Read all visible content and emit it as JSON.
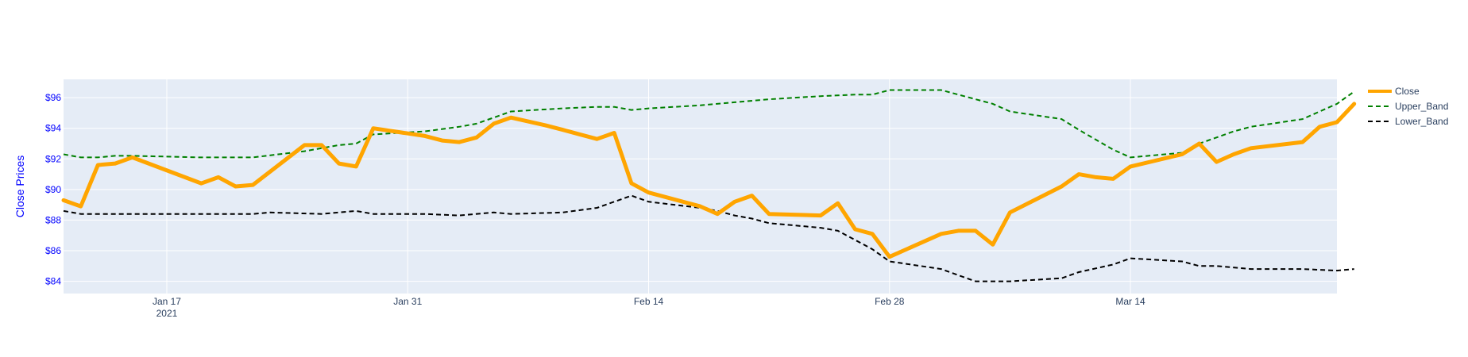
{
  "chart_data": {
    "type": "line",
    "ylabel": "Close Prices",
    "ylim": [
      83.2,
      97.2
    ],
    "xlim": [
      "2021-01-11",
      "2021-03-26"
    ],
    "grid": true,
    "legend_position": "top-right",
    "x_ticks": [
      {
        "date": "2021-01-17",
        "label": "Jan 17",
        "sublabel": "2021"
      },
      {
        "date": "2021-01-31",
        "label": "Jan 31",
        "sublabel": ""
      },
      {
        "date": "2021-02-14",
        "label": "Feb 14",
        "sublabel": ""
      },
      {
        "date": "2021-02-28",
        "label": "Feb 28",
        "sublabel": ""
      },
      {
        "date": "2021-03-14",
        "label": "Mar 14",
        "sublabel": ""
      }
    ],
    "y_ticks": [
      {
        "value": 84,
        "label": "$84"
      },
      {
        "value": 86,
        "label": "$86"
      },
      {
        "value": 88,
        "label": "$88"
      },
      {
        "value": 90,
        "label": "$90"
      },
      {
        "value": 92,
        "label": "$92"
      },
      {
        "value": 94,
        "label": "$94"
      },
      {
        "value": 96,
        "label": "$96"
      }
    ],
    "series": [
      {
        "name": "Close",
        "color": "#FFA500",
        "dash": "solid",
        "points": [
          [
            "2021-01-11",
            89.3
          ],
          [
            "2021-01-12",
            88.9
          ],
          [
            "2021-01-13",
            91.6
          ],
          [
            "2021-01-14",
            91.7
          ],
          [
            "2021-01-15",
            92.1
          ],
          [
            "2021-01-19",
            90.4
          ],
          [
            "2021-01-20",
            90.8
          ],
          [
            "2021-01-21",
            90.2
          ],
          [
            "2021-01-22",
            90.3
          ],
          [
            "2021-01-25",
            92.9
          ],
          [
            "2021-01-26",
            92.9
          ],
          [
            "2021-01-27",
            91.7
          ],
          [
            "2021-01-28",
            91.5
          ],
          [
            "2021-01-29",
            94.0
          ],
          [
            "2021-02-01",
            93.5
          ],
          [
            "2021-02-02",
            93.2
          ],
          [
            "2021-02-03",
            93.1
          ],
          [
            "2021-02-04",
            93.4
          ],
          [
            "2021-02-05",
            94.3
          ],
          [
            "2021-02-06",
            94.7
          ],
          [
            "2021-02-08",
            94.2
          ],
          [
            "2021-02-09",
            93.9
          ],
          [
            "2021-02-10",
            93.6
          ],
          [
            "2021-02-11",
            93.3
          ],
          [
            "2021-02-12",
            93.7
          ],
          [
            "2021-02-13",
            90.4
          ],
          [
            "2021-02-14",
            89.8
          ],
          [
            "2021-02-17",
            88.9
          ],
          [
            "2021-02-18",
            88.4
          ],
          [
            "2021-02-19",
            89.2
          ],
          [
            "2021-02-20",
            89.6
          ],
          [
            "2021-02-21",
            88.4
          ],
          [
            "2021-02-24",
            88.3
          ],
          [
            "2021-02-25",
            89.1
          ],
          [
            "2021-02-26",
            87.4
          ],
          [
            "2021-02-27",
            87.1
          ],
          [
            "2021-02-28",
            85.6
          ],
          [
            "2021-03-03",
            87.1
          ],
          [
            "2021-03-04",
            87.3
          ],
          [
            "2021-03-05",
            87.3
          ],
          [
            "2021-03-06",
            86.4
          ],
          [
            "2021-03-07",
            88.5
          ],
          [
            "2021-03-10",
            90.2
          ],
          [
            "2021-03-11",
            91.0
          ],
          [
            "2021-03-12",
            90.8
          ],
          [
            "2021-03-13",
            90.7
          ],
          [
            "2021-03-14",
            91.5
          ],
          [
            "2021-03-17",
            92.3
          ],
          [
            "2021-03-18",
            93.0
          ],
          [
            "2021-03-19",
            91.8
          ],
          [
            "2021-03-20",
            92.3
          ],
          [
            "2021-03-21",
            92.7
          ],
          [
            "2021-03-24",
            93.1
          ],
          [
            "2021-03-25",
            94.1
          ],
          [
            "2021-03-26",
            94.4
          ],
          [
            "2021-03-27",
            95.6
          ]
        ]
      },
      {
        "name": "Upper_Band",
        "color": "#008000",
        "dash": "dashed",
        "points": [
          [
            "2021-01-11",
            92.3
          ],
          [
            "2021-01-12",
            92.1
          ],
          [
            "2021-01-13",
            92.1
          ],
          [
            "2021-01-14",
            92.2
          ],
          [
            "2021-01-15",
            92.2
          ],
          [
            "2021-01-19",
            92.1
          ],
          [
            "2021-01-20",
            92.1
          ],
          [
            "2021-01-22",
            92.1
          ],
          [
            "2021-01-25",
            92.5
          ],
          [
            "2021-01-27",
            92.9
          ],
          [
            "2021-01-28",
            93.0
          ],
          [
            "2021-01-29",
            93.6
          ],
          [
            "2021-02-01",
            93.8
          ],
          [
            "2021-02-03",
            94.1
          ],
          [
            "2021-02-04",
            94.3
          ],
          [
            "2021-02-05",
            94.7
          ],
          [
            "2021-02-06",
            95.1
          ],
          [
            "2021-02-09",
            95.3
          ],
          [
            "2021-02-11",
            95.4
          ],
          [
            "2021-02-12",
            95.4
          ],
          [
            "2021-02-13",
            95.2
          ],
          [
            "2021-02-14",
            95.3
          ],
          [
            "2021-02-17",
            95.5
          ],
          [
            "2021-02-19",
            95.7
          ],
          [
            "2021-02-21",
            95.9
          ],
          [
            "2021-02-24",
            96.1
          ],
          [
            "2021-02-26",
            96.2
          ],
          [
            "2021-02-27",
            96.2
          ],
          [
            "2021-02-28",
            96.5
          ],
          [
            "2021-03-03",
            96.5
          ],
          [
            "2021-03-05",
            95.9
          ],
          [
            "2021-03-06",
            95.6
          ],
          [
            "2021-03-07",
            95.1
          ],
          [
            "2021-03-10",
            94.6
          ],
          [
            "2021-03-11",
            93.9
          ],
          [
            "2021-03-13",
            92.6
          ],
          [
            "2021-03-14",
            92.1
          ],
          [
            "2021-03-17",
            92.4
          ],
          [
            "2021-03-18",
            93.0
          ],
          [
            "2021-03-19",
            93.4
          ],
          [
            "2021-03-20",
            93.8
          ],
          [
            "2021-03-21",
            94.1
          ],
          [
            "2021-03-24",
            94.6
          ],
          [
            "2021-03-25",
            95.1
          ],
          [
            "2021-03-26",
            95.6
          ],
          [
            "2021-03-27",
            96.4
          ]
        ]
      },
      {
        "name": "Lower_Band",
        "color": "#000000",
        "dash": "dashed",
        "points": [
          [
            "2021-01-11",
            88.6
          ],
          [
            "2021-01-12",
            88.4
          ],
          [
            "2021-01-14",
            88.4
          ],
          [
            "2021-01-15",
            88.4
          ],
          [
            "2021-01-19",
            88.4
          ],
          [
            "2021-01-22",
            88.4
          ],
          [
            "2021-01-23",
            88.5
          ],
          [
            "2021-01-26",
            88.4
          ],
          [
            "2021-01-28",
            88.6
          ],
          [
            "2021-01-29",
            88.4
          ],
          [
            "2021-02-01",
            88.4
          ],
          [
            "2021-02-03",
            88.3
          ],
          [
            "2021-02-05",
            88.5
          ],
          [
            "2021-02-06",
            88.4
          ],
          [
            "2021-02-09",
            88.5
          ],
          [
            "2021-02-11",
            88.8
          ],
          [
            "2021-02-13",
            89.6
          ],
          [
            "2021-02-14",
            89.2
          ],
          [
            "2021-02-17",
            88.8
          ],
          [
            "2021-02-18",
            88.6
          ],
          [
            "2021-02-19",
            88.3
          ],
          [
            "2021-02-20",
            88.1
          ],
          [
            "2021-02-21",
            87.8
          ],
          [
            "2021-02-24",
            87.5
          ],
          [
            "2021-02-25",
            87.3
          ],
          [
            "2021-02-26",
            86.7
          ],
          [
            "2021-02-27",
            86.1
          ],
          [
            "2021-02-28",
            85.3
          ],
          [
            "2021-03-03",
            84.8
          ],
          [
            "2021-03-04",
            84.4
          ],
          [
            "2021-03-05",
            84.0
          ],
          [
            "2021-03-06",
            84.0
          ],
          [
            "2021-03-07",
            84.0
          ],
          [
            "2021-03-10",
            84.2
          ],
          [
            "2021-03-11",
            84.6
          ],
          [
            "2021-03-13",
            85.1
          ],
          [
            "2021-03-14",
            85.5
          ],
          [
            "2021-03-17",
            85.3
          ],
          [
            "2021-03-18",
            85.0
          ],
          [
            "2021-03-19",
            85.0
          ],
          [
            "2021-03-21",
            84.8
          ],
          [
            "2021-03-24",
            84.8
          ],
          [
            "2021-03-26",
            84.7
          ],
          [
            "2021-03-27",
            84.8
          ]
        ]
      }
    ]
  }
}
